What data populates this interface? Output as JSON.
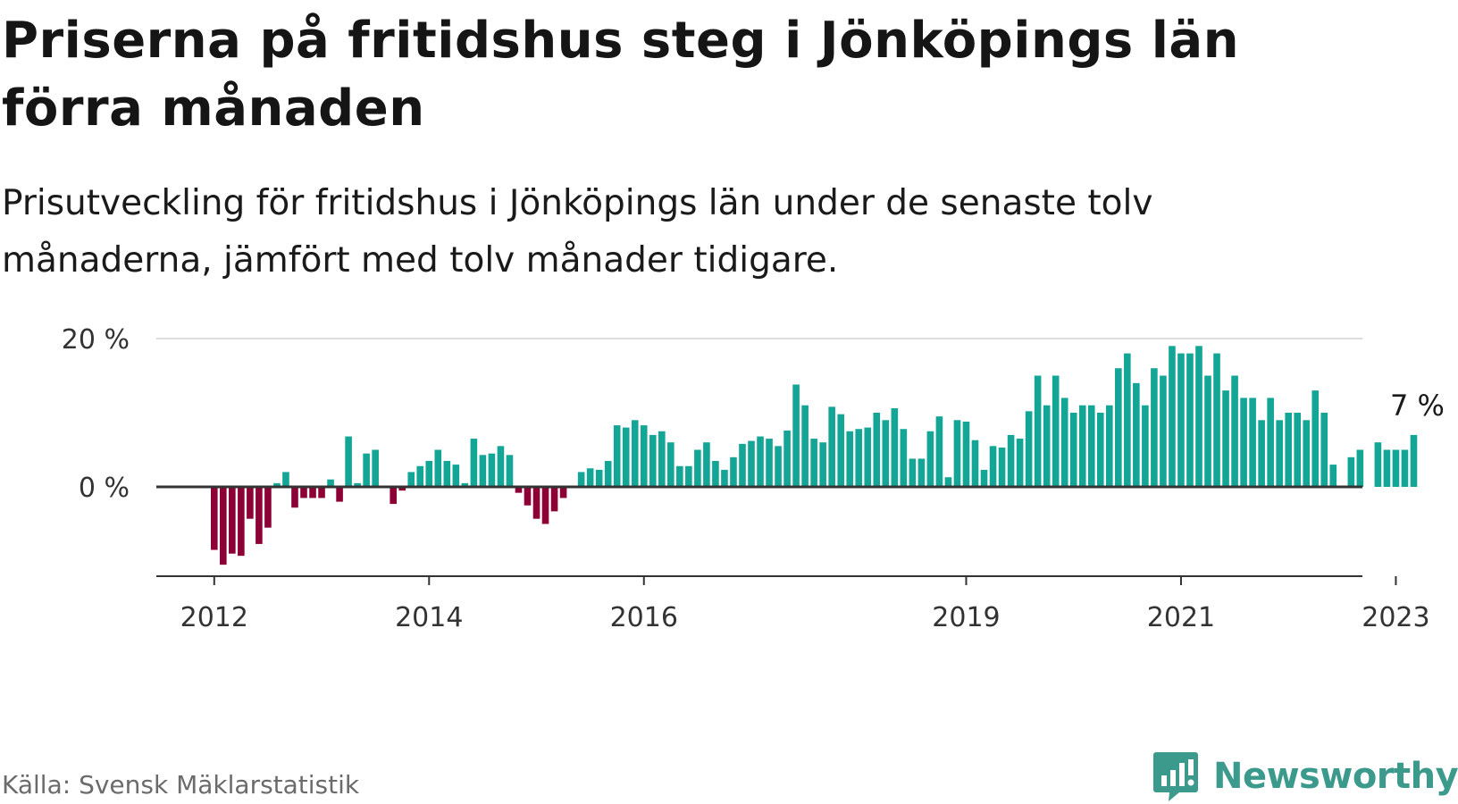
{
  "title": "Priserna på fritidshus steg i Jönköpings län förra månaden",
  "subtitle": "Prisutveckling för fritidshus i Jönköpings län under de senaste tolv månaderna, jämfört med tolv månader tidigare.",
  "source": "Källa: Svensk Mäklarstatistik",
  "brand": "Newsworthy",
  "colors": {
    "positive": "#13a596",
    "negative": "#8c0036",
    "brand": "#3c9a8c",
    "grid": "#dddddd",
    "axis": "#333333"
  },
  "chart_data": {
    "type": "bar",
    "unit": "%",
    "ylim": [
      -11,
      20
    ],
    "y_ticks": [
      0,
      20
    ],
    "y_tick_labels": [
      "0 %",
      "20 %"
    ],
    "x_ticks": [
      "2012",
      "2014",
      "2016",
      "2019",
      "2021",
      "2023"
    ],
    "x_tick_months": [
      0,
      24,
      48,
      84,
      108,
      132
    ],
    "start": "2011-12",
    "end": "2023-02",
    "annotation": "7 %",
    "values": [
      -8.5,
      -10.5,
      -9.0,
      -9.3,
      -4.3,
      -7.7,
      -5.5,
      0.5,
      2.0,
      -2.8,
      -1.5,
      -1.5,
      -1.5,
      1.0,
      -2.0,
      6.8,
      0.5,
      4.5,
      5.0,
      0.0,
      -2.3,
      -0.5,
      2.0,
      2.8,
      3.5,
      5.0,
      3.5,
      3.0,
      0.5,
      6.5,
      4.3,
      4.5,
      5.5,
      4.3,
      -0.8,
      -2.5,
      -4.3,
      -5.0,
      -3.3,
      -1.5,
      0.0,
      2.0,
      2.5,
      2.3,
      3.5,
      8.3,
      8.0,
      9.0,
      8.3,
      7.0,
      7.5,
      6.0,
      2.8,
      2.8,
      5.0,
      6.0,
      3.5,
      2.3,
      4.0,
      5.8,
      6.2,
      6.8,
      6.5,
      5.5,
      7.6,
      13.8,
      11.0,
      6.5,
      6.0,
      10.8,
      9.8,
      7.5,
      7.8,
      8.0,
      10.0,
      9.0,
      10.6,
      7.8,
      3.8,
      3.8,
      7.5,
      9.5,
      1.3,
      9.0,
      8.8,
      6.3,
      2.3,
      5.5,
      5.3,
      7.0,
      6.5,
      10.2,
      15.0,
      11.0,
      15.0,
      12.0,
      10.0,
      11.0,
      11.0,
      10.0,
      11.0,
      16.0,
      18.0,
      14.0,
      11.0,
      16.0,
      15.0,
      19.0,
      18.0,
      18.0,
      19.0,
      15.0,
      18.0,
      13.0,
      15.0,
      12.0,
      12.0,
      9.0,
      12.0,
      9.0,
      10.0,
      10.0,
      9.0,
      13.0,
      10.0,
      3.0,
      0.0,
      4.0,
      5.0,
      0.0,
      6.0,
      5.0,
      5.0,
      5.0,
      7.0
    ]
  }
}
